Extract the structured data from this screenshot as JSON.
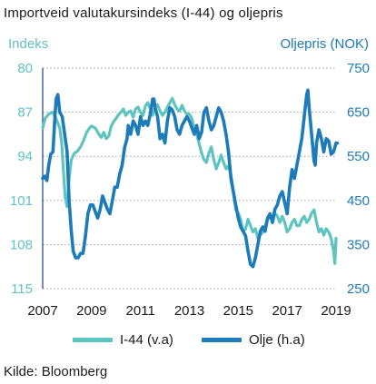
{
  "title": "Importveid valutakursindeks (I-44) og oljepris",
  "source": "Kilde: Bloomberg",
  "chart_data": {
    "type": "line",
    "left_axis": {
      "label": "Indeks",
      "ticks": [
        80,
        87,
        94,
        101,
        108,
        115
      ],
      "range": [
        80,
        115
      ],
      "inverted": true,
      "color": "#5ec4c0"
    },
    "right_axis": {
      "label": "Oljepris (NOK)",
      "ticks": [
        750,
        650,
        550,
        450,
        350,
        250
      ],
      "range": [
        250,
        750
      ],
      "color": "#1c7bb8"
    },
    "x_axis": {
      "ticks": [
        "2007",
        "2009",
        "2011",
        "2013",
        "2015",
        "2017",
        "2019"
      ],
      "range": [
        2007,
        2019
      ]
    },
    "grid": "horizontal dotted",
    "legend_position": "bottom",
    "series": [
      {
        "name": "I-44 (v.a)",
        "axis": "left",
        "color": "#5ec4c0",
        "points": [
          [
            2007.0,
            89.5
          ],
          [
            2007.1,
            88.0
          ],
          [
            2007.25,
            87.3
          ],
          [
            2007.4,
            87.0
          ],
          [
            2007.5,
            87.6
          ],
          [
            2007.6,
            88.5
          ],
          [
            2007.7,
            89.5
          ],
          [
            2007.78,
            92.0
          ],
          [
            2007.85,
            96.5
          ],
          [
            2007.92,
            100.5
          ],
          [
            2008.0,
            102.0
          ],
          [
            2008.08,
            97.5
          ],
          [
            2008.17,
            94.5
          ],
          [
            2008.3,
            93.5
          ],
          [
            2008.42,
            93.2
          ],
          [
            2008.55,
            92.5
          ],
          [
            2008.67,
            91.5
          ],
          [
            2008.8,
            90.2
          ],
          [
            2008.92,
            89.5
          ],
          [
            2009.0,
            89.2
          ],
          [
            2009.15,
            89.5
          ],
          [
            2009.3,
            90.5
          ],
          [
            2009.4,
            91.0
          ],
          [
            2009.5,
            90.2
          ],
          [
            2009.6,
            91.2
          ],
          [
            2009.7,
            90.8
          ],
          [
            2009.8,
            89.2
          ],
          [
            2009.9,
            88.5
          ],
          [
            2010.0,
            88.0
          ],
          [
            2010.1,
            87.4
          ],
          [
            2010.2,
            87.0
          ],
          [
            2010.3,
            86.5
          ],
          [
            2010.4,
            87.5
          ],
          [
            2010.5,
            87.0
          ],
          [
            2010.6,
            86.8
          ],
          [
            2010.7,
            87.8
          ],
          [
            2010.8,
            86.5
          ],
          [
            2010.9,
            86.2
          ],
          [
            2011.0,
            87.0
          ],
          [
            2011.1,
            87.5
          ],
          [
            2011.2,
            86.0
          ],
          [
            2011.3,
            85.5
          ],
          [
            2011.4,
            86.5
          ],
          [
            2011.5,
            87.5
          ],
          [
            2011.6,
            86.2
          ],
          [
            2011.7,
            85.8
          ],
          [
            2011.8,
            86.8
          ],
          [
            2011.9,
            87.5
          ],
          [
            2012.0,
            87.0
          ],
          [
            2012.1,
            86.2
          ],
          [
            2012.2,
            85.5
          ],
          [
            2012.3,
            84.8
          ],
          [
            2012.4,
            85.8
          ],
          [
            2012.5,
            86.5
          ],
          [
            2012.6,
            86.8
          ],
          [
            2012.7,
            85.9
          ],
          [
            2012.8,
            86.8
          ],
          [
            2012.9,
            87.3
          ],
          [
            2013.0,
            87.3
          ],
          [
            2013.1,
            88.0
          ],
          [
            2013.2,
            89.5
          ],
          [
            2013.3,
            90.5
          ],
          [
            2013.4,
            92.0
          ],
          [
            2013.5,
            93.5
          ],
          [
            2013.6,
            94.5
          ],
          [
            2013.7,
            95.0
          ],
          [
            2013.8,
            93.5
          ],
          [
            2013.9,
            92.5
          ],
          [
            2014.0,
            94.5
          ],
          [
            2014.1,
            96.0
          ],
          [
            2014.2,
            95.0
          ],
          [
            2014.3,
            93.8
          ],
          [
            2014.4,
            95.0
          ],
          [
            2014.5,
            96.0
          ],
          [
            2014.6,
            95.5
          ],
          [
            2014.7,
            97.0
          ],
          [
            2014.8,
            99.5
          ],
          [
            2014.9,
            102.5
          ],
          [
            2015.0,
            103.0
          ],
          [
            2015.1,
            104.0
          ],
          [
            2015.2,
            106.0
          ],
          [
            2015.3,
            105.5
          ],
          [
            2015.4,
            104.0
          ],
          [
            2015.5,
            105.0
          ],
          [
            2015.6,
            106.0
          ],
          [
            2015.7,
            105.5
          ],
          [
            2015.8,
            107.0
          ],
          [
            2015.9,
            106.5
          ],
          [
            2016.0,
            106.0
          ],
          [
            2016.1,
            105.0
          ],
          [
            2016.2,
            104.0
          ],
          [
            2016.3,
            103.5
          ],
          [
            2016.4,
            104.5
          ],
          [
            2016.5,
            103.0
          ],
          [
            2016.6,
            103.5
          ],
          [
            2016.7,
            104.5
          ],
          [
            2016.8,
            103.5
          ],
          [
            2016.9,
            104.5
          ],
          [
            2017.0,
            106.0
          ],
          [
            2017.1,
            105.5
          ],
          [
            2017.2,
            104.5
          ],
          [
            2017.3,
            104.0
          ],
          [
            2017.4,
            105.0
          ],
          [
            2017.5,
            105.0
          ],
          [
            2017.6,
            104.0
          ],
          [
            2017.7,
            103.5
          ],
          [
            2017.8,
            104.5
          ],
          [
            2017.9,
            104.0
          ],
          [
            2018.0,
            103.0
          ],
          [
            2018.1,
            102.5
          ],
          [
            2018.2,
            104.5
          ],
          [
            2018.3,
            106.0
          ],
          [
            2018.4,
            105.5
          ],
          [
            2018.5,
            106.5
          ],
          [
            2018.6,
            105.5
          ],
          [
            2018.7,
            106.0
          ],
          [
            2018.8,
            107.0
          ],
          [
            2018.9,
            109.0
          ],
          [
            2018.95,
            111.0
          ],
          [
            2019.0,
            107.0
          ]
        ]
      },
      {
        "name": "Olje (h.a)",
        "axis": "right",
        "color": "#1c7bb8",
        "points": [
          [
            2007.0,
            500
          ],
          [
            2007.08,
            505
          ],
          [
            2007.17,
            495
          ],
          [
            2007.25,
            530
          ],
          [
            2007.33,
            555
          ],
          [
            2007.42,
            560
          ],
          [
            2007.5,
            640
          ],
          [
            2007.55,
            680
          ],
          [
            2007.62,
            690
          ],
          [
            2007.7,
            650
          ],
          [
            2007.8,
            640
          ],
          [
            2007.9,
            600
          ],
          [
            2008.0,
            560
          ],
          [
            2008.08,
            450
          ],
          [
            2008.17,
            380
          ],
          [
            2008.25,
            335
          ],
          [
            2008.35,
            320
          ],
          [
            2008.45,
            320
          ],
          [
            2008.55,
            330
          ],
          [
            2008.65,
            330
          ],
          [
            2008.75,
            370
          ],
          [
            2008.85,
            420
          ],
          [
            2008.95,
            440
          ],
          [
            2009.05,
            440
          ],
          [
            2009.15,
            425
          ],
          [
            2009.25,
            410
          ],
          [
            2009.35,
            430
          ],
          [
            2009.45,
            460
          ],
          [
            2009.55,
            445
          ],
          [
            2009.65,
            430
          ],
          [
            2009.75,
            420
          ],
          [
            2009.85,
            450
          ],
          [
            2009.95,
            480
          ],
          [
            2010.05,
            480
          ],
          [
            2010.15,
            510
          ],
          [
            2010.25,
            530
          ],
          [
            2010.35,
            570
          ],
          [
            2010.45,
            590
          ],
          [
            2010.5,
            620
          ],
          [
            2010.6,
            600
          ],
          [
            2010.7,
            630
          ],
          [
            2010.8,
            620
          ],
          [
            2010.9,
            600
          ],
          [
            2011.0,
            640
          ],
          [
            2011.1,
            620
          ],
          [
            2011.2,
            630
          ],
          [
            2011.3,
            620
          ],
          [
            2011.4,
            645
          ],
          [
            2011.5,
            680
          ],
          [
            2011.55,
            680
          ],
          [
            2011.6,
            660
          ],
          [
            2011.7,
            640
          ],
          [
            2011.8,
            590
          ],
          [
            2011.9,
            600
          ],
          [
            2012.0,
            580
          ],
          [
            2012.1,
            630
          ],
          [
            2012.2,
            660
          ],
          [
            2012.3,
            655
          ],
          [
            2012.4,
            640
          ],
          [
            2012.5,
            610
          ],
          [
            2012.6,
            600
          ],
          [
            2012.7,
            620
          ],
          [
            2012.8,
            630
          ],
          [
            2012.9,
            640
          ],
          [
            2013.0,
            630
          ],
          [
            2013.1,
            615
          ],
          [
            2013.2,
            600
          ],
          [
            2013.3,
            620
          ],
          [
            2013.4,
            590
          ],
          [
            2013.5,
            605
          ],
          [
            2013.6,
            650
          ],
          [
            2013.7,
            660
          ],
          [
            2013.8,
            630
          ],
          [
            2013.9,
            610
          ],
          [
            2014.0,
            620
          ],
          [
            2014.1,
            640
          ],
          [
            2014.2,
            660
          ],
          [
            2014.3,
            650
          ],
          [
            2014.4,
            630
          ],
          [
            2014.5,
            600
          ],
          [
            2014.6,
            560
          ],
          [
            2014.7,
            500
          ],
          [
            2014.8,
            470
          ],
          [
            2014.9,
            440
          ],
          [
            2015.0,
            410
          ],
          [
            2015.1,
            390
          ],
          [
            2015.2,
            380
          ],
          [
            2015.3,
            370
          ],
          [
            2015.4,
            335
          ],
          [
            2015.5,
            305
          ],
          [
            2015.6,
            300
          ],
          [
            2015.7,
            320
          ],
          [
            2015.8,
            350
          ],
          [
            2015.9,
            380
          ],
          [
            2016.0,
            390
          ],
          [
            2016.1,
            380
          ],
          [
            2016.2,
            410
          ],
          [
            2016.3,
            420
          ],
          [
            2016.4,
            400
          ],
          [
            2016.5,
            430
          ],
          [
            2016.6,
            440
          ],
          [
            2016.7,
            460
          ],
          [
            2016.8,
            470
          ],
          [
            2016.9,
            445
          ],
          [
            2017.0,
            420
          ],
          [
            2017.1,
            480
          ],
          [
            2017.2,
            520
          ],
          [
            2017.3,
            500
          ],
          [
            2017.4,
            530
          ],
          [
            2017.5,
            560
          ],
          [
            2017.6,
            590
          ],
          [
            2017.7,
            640
          ],
          [
            2017.8,
            690
          ],
          [
            2017.85,
            700
          ],
          [
            2017.9,
            660
          ],
          [
            2018.0,
            600
          ],
          [
            2018.1,
            540
          ],
          [
            2018.15,
            530
          ],
          [
            2018.2,
            580
          ],
          [
            2018.3,
            610
          ],
          [
            2018.4,
            590
          ],
          [
            2018.5,
            560
          ],
          [
            2018.6,
            590
          ],
          [
            2018.7,
            585
          ],
          [
            2018.8,
            555
          ],
          [
            2018.9,
            560
          ],
          [
            2019.0,
            580
          ],
          [
            2019.05,
            580
          ]
        ]
      }
    ]
  },
  "legend": {
    "items": [
      {
        "label": "I-44  (v.a)",
        "color": "#5ec4c0"
      },
      {
        "label": "Olje  (h.a)",
        "color": "#1c7bb8"
      }
    ]
  }
}
